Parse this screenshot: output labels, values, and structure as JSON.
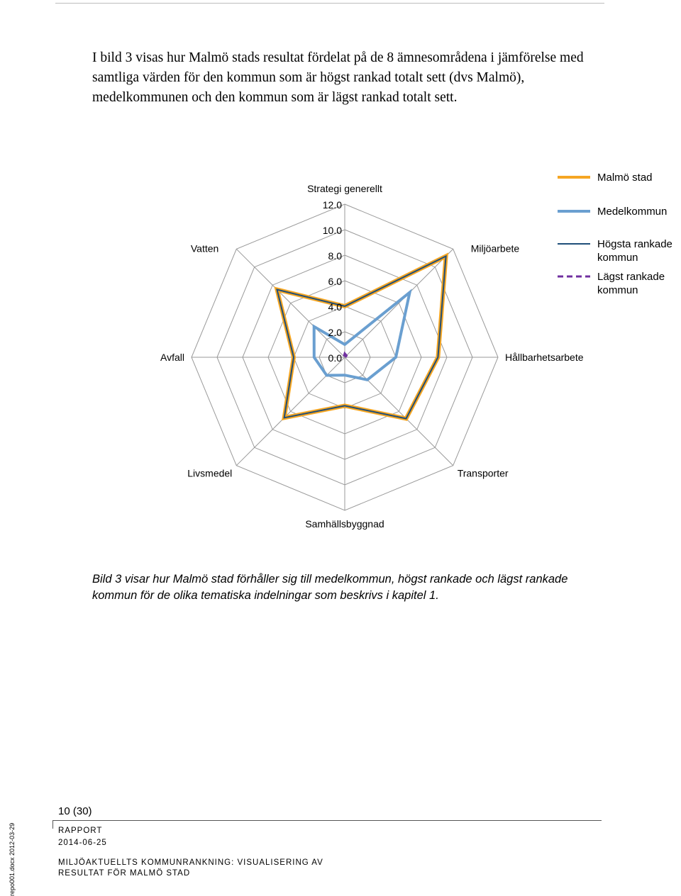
{
  "intro_text": "I bild 3 visas hur Malmö stads resultat fördelat på de 8 ämnesområdena i jämförelse med samtliga värden för den kommun som är högst rankad totalt sett (dvs Malmö), medelkommunen och den kommun som är lägst rankad totalt sett.",
  "chart_data": {
    "type": "radar",
    "categories": [
      "Strategi generellt",
      "Miljöarbete",
      "Hållbarhetsarbete",
      "Transporter",
      "Samhällsbyggnad",
      "Livsmedel",
      "Avfall",
      "Vatten"
    ],
    "tick_labels": [
      "0.0",
      "2.0",
      "4.0",
      "6.0",
      "8.0",
      "10.0",
      "12.0"
    ],
    "rlim": [
      0,
      12
    ],
    "grid": true,
    "legend_position": "top-right",
    "series": [
      {
        "name": "Malmö stad",
        "color": "#f5a623",
        "dashed": false,
        "values": [
          4.0,
          11.2,
          7.3,
          6.8,
          3.8,
          6.7,
          4.0,
          7.5
        ]
      },
      {
        "name": "Medelkommun",
        "color": "#6a9fd0",
        "dashed": false,
        "values": [
          1.0,
          7.2,
          4.0,
          2.5,
          1.4,
          2.0,
          2.4,
          3.4
        ]
      },
      {
        "name": "Högsta rankade kommun",
        "color": "#1f4e79",
        "dashed": false,
        "values": [
          4.0,
          11.2,
          7.3,
          6.8,
          3.8,
          6.7,
          4.0,
          7.5
        ]
      },
      {
        "name": "Lägst rankade kommun",
        "color": "#7030a0",
        "dashed": true,
        "values": [
          0.3,
          0.2,
          0.05,
          0.05,
          0.05,
          0.05,
          0.05,
          0.1
        ]
      }
    ]
  },
  "caption": "Bild 3 visar hur Malmö stad förhåller sig till medelkommun, högst rankade och lägst rankade kommun för de olika tematiska indelningar som beskrivs i kapitel 1.",
  "footer": {
    "page_number": "10 (30)",
    "doc_type": "RAPPORT",
    "date": "2014-06-25",
    "title_line1": "MILJÖAKTUELLTS KOMMUNRANKNING: VISUALISERING AV",
    "title_line2": "RESULTAT FÖR MALMÖ STAD",
    "side_text": "repo001.docx 2012-03-29"
  }
}
